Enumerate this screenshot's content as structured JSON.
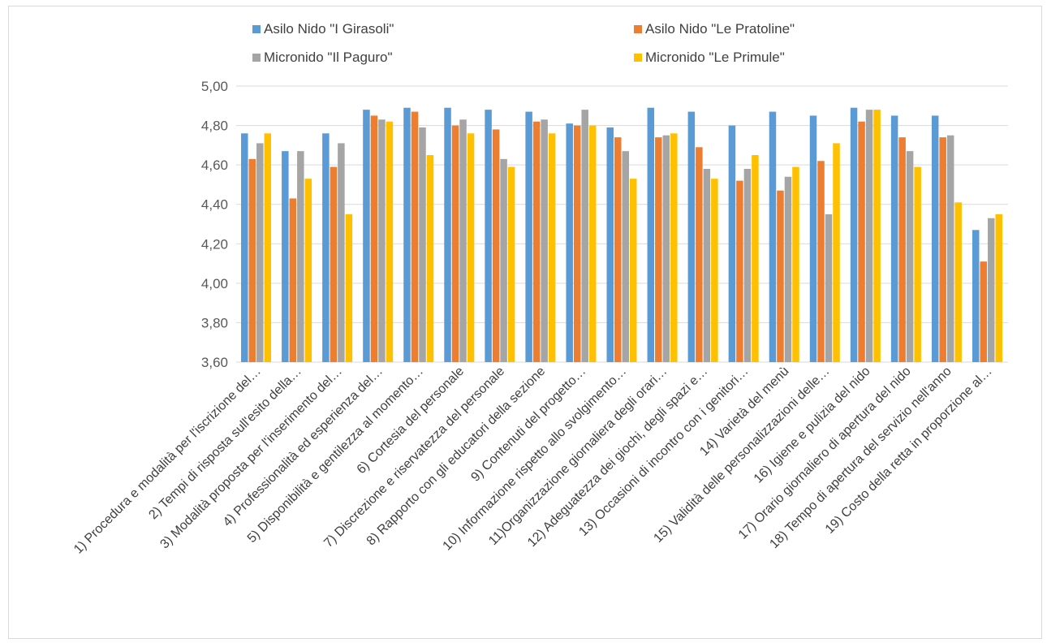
{
  "chart_data": {
    "type": "bar",
    "title": "",
    "xlabel": "",
    "ylabel": "",
    "ylim": [
      3.6,
      5.0
    ],
    "yticks": [
      "5,00",
      "4,80",
      "4,60",
      "4,40",
      "4,20",
      "4,00",
      "3,80",
      "3,60"
    ],
    "grid": true,
    "legend_position": "top",
    "categories": [
      "1) Procedura e modalità per l'iscrizione del…",
      "2) Tempi di risposta sull'esito della…",
      "3) Modalità proposta per l'inserimento del…",
      "4) Professionalità ed esperienza del…",
      "5) Disponibilità e gentilezza al momento…",
      "6) Cortesia del personale",
      "7) Discrezione e riservatezza del personale",
      "8) Rapporto con gli educatori della sezione",
      "9) Contenuti del progetto…",
      "10) Informazione rispetto allo svolgimento…",
      "11)Organizzazione giornaliera degli orari…",
      "12) Adeguatezza dei giochi, degli spazi e…",
      "13) Occasioni di incontro con i genitori…",
      "14) Varietà del menù",
      "15)  Validità delle personalizzazioni delle…",
      "16)  Igiene e pulizia del nido",
      "17)  Orario giornaliero di apertura del nido",
      "18) Tempo di apertura del servizio nell'anno",
      "19)  Costo della retta in proporzione al…"
    ],
    "series": [
      {
        "name": "Asilo Nido \"I Girasoli\"",
        "color": "#5b9bd5",
        "values": [
          4.76,
          4.67,
          4.76,
          4.88,
          4.89,
          4.89,
          4.88,
          4.87,
          4.81,
          4.79,
          4.89,
          4.87,
          4.8,
          4.87,
          4.85,
          4.89,
          4.85,
          4.85,
          4.27
        ]
      },
      {
        "name": "Asilo Nido \"Le Pratoline\"",
        "color": "#ed7d31",
        "values": [
          4.63,
          4.43,
          4.59,
          4.85,
          4.87,
          4.8,
          4.78,
          4.82,
          4.8,
          4.74,
          4.74,
          4.69,
          4.52,
          4.47,
          4.62,
          4.82,
          4.74,
          4.74,
          4.11
        ]
      },
      {
        "name": "Micronido \"Il Paguro\"",
        "color": "#a5a5a5",
        "values": [
          4.71,
          4.67,
          4.71,
          4.83,
          4.79,
          4.83,
          4.63,
          4.83,
          4.88,
          4.67,
          4.75,
          4.58,
          4.58,
          4.54,
          4.35,
          4.88,
          4.67,
          4.75,
          4.33
        ]
      },
      {
        "name": "Micronido \"Le Primule\"",
        "color": "#ffc000",
        "values": [
          4.76,
          4.53,
          4.35,
          4.82,
          4.65,
          4.76,
          4.59,
          4.76,
          4.8,
          4.53,
          4.76,
          4.53,
          4.65,
          4.59,
          4.71,
          4.88,
          4.59,
          4.41,
          4.35
        ]
      }
    ]
  }
}
